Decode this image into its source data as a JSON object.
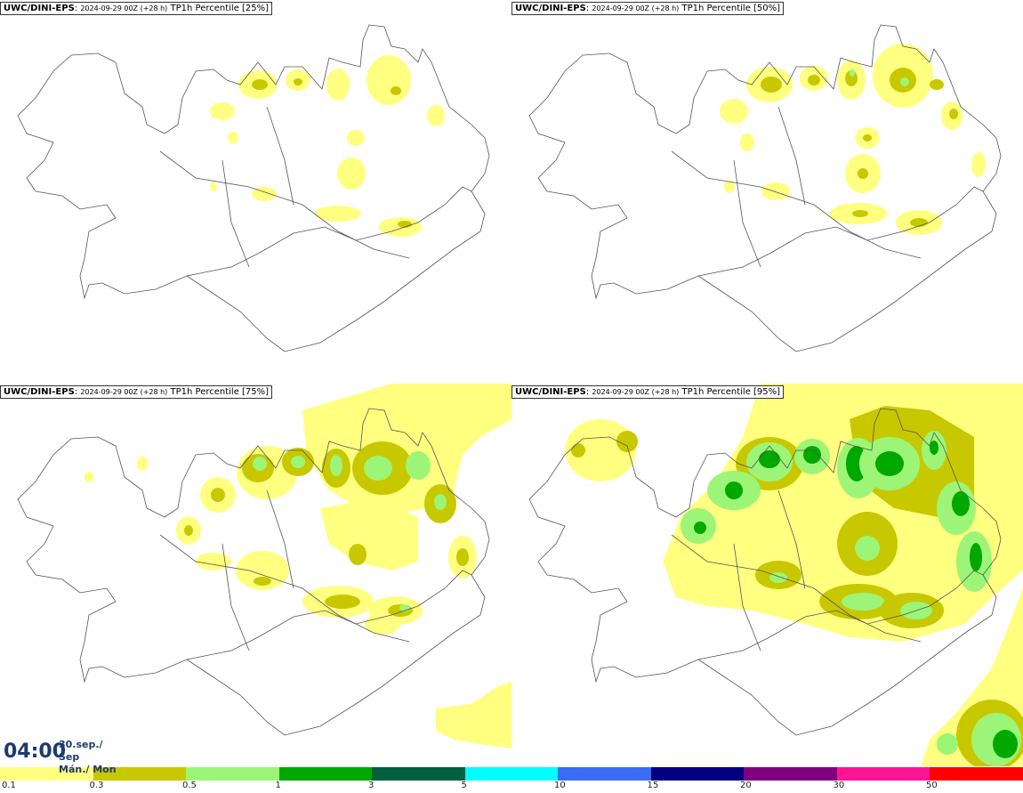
{
  "panels": [
    {
      "model": "UWC/DINI-EPS",
      "run": "2024-09-29 00Z (+28 h)",
      "label": "TP1h Percentile [25%]"
    },
    {
      "model": "UWC/DINI-EPS",
      "run": "2024-09-29 00Z (+28 h)",
      "label": "TP1h Percentile [50%]"
    },
    {
      "model": "UWC/DINI-EPS",
      "run": "2024-09-29 00Z (+28 h)",
      "label": "TP1h Percentile [75%]"
    },
    {
      "model": "UWC/DINI-EPS",
      "run": "2024-09-29 00Z (+28 h)",
      "label": "TP1h Percentile [95%]"
    }
  ],
  "valid_time": {
    "time": "04:00",
    "date": "30.sep./ Sep",
    "day": "Mán./ Mon"
  },
  "legend": {
    "colors": [
      "#ffff80",
      "#c8c800",
      "#9cf577",
      "#00a800",
      "#006040",
      "#00ffff",
      "#3a6cf5",
      "#000080",
      "#800080",
      "#ff1493",
      "#ff0000"
    ],
    "ticks": [
      "0.1",
      "0.3",
      "0.5",
      "1",
      "3",
      "5",
      "10",
      "15",
      "20",
      "30",
      "50"
    ]
  }
}
